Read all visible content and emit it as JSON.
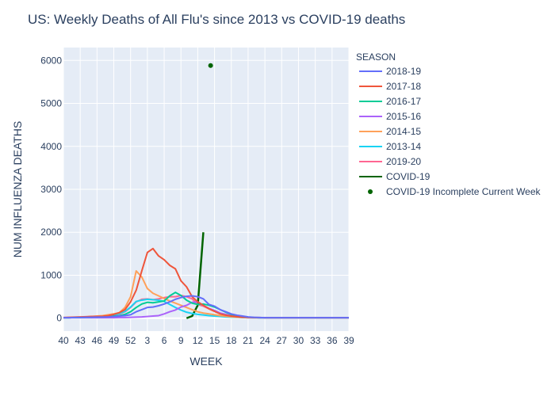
{
  "chart_data": {
    "type": "line",
    "title": "US: Weekly Deaths of All Flu's since 2013 vs COVID-19 deaths",
    "xlabel": "WEEK",
    "ylabel": "NUM INFLUENZA DEATHS",
    "x_categories": [
      "40",
      "41",
      "42",
      "43",
      "44",
      "45",
      "46",
      "47",
      "48",
      "49",
      "50",
      "51",
      "52",
      "1",
      "2",
      "3",
      "4",
      "5",
      "6",
      "7",
      "8",
      "9",
      "10",
      "11",
      "12",
      "13",
      "14",
      "15",
      "16",
      "17",
      "18",
      "19",
      "20",
      "21",
      "22",
      "23",
      "24",
      "25",
      "26",
      "27",
      "28",
      "29",
      "30",
      "31",
      "32",
      "33",
      "34",
      "35",
      "36",
      "37",
      "38",
      "39"
    ],
    "x_tick_labels": [
      "40",
      "43",
      "46",
      "49",
      "52",
      "3",
      "6",
      "9",
      "12",
      "15",
      "18",
      "21",
      "24",
      "27",
      "30",
      "33",
      "36",
      "39"
    ],
    "ylim": [
      -300,
      6300
    ],
    "y_ticks": [
      0,
      1000,
      2000,
      3000,
      4000,
      5000,
      6000
    ],
    "grid": true,
    "legend_title": "SEASON",
    "legend_position": "right",
    "series": [
      {
        "name": "2018-19",
        "color": "#636efa",
        "values": [
          10,
          10,
          15,
          15,
          20,
          20,
          25,
          25,
          30,
          40,
          50,
          60,
          80,
          150,
          200,
          250,
          260,
          290,
          330,
          380,
          440,
          480,
          510,
          520,
          500,
          450,
          320,
          280,
          200,
          150,
          100,
          70,
          50,
          30,
          20,
          15,
          10,
          10,
          10,
          10,
          10,
          10,
          10,
          10,
          10,
          10,
          10,
          10,
          10,
          10,
          10,
          10
        ]
      },
      {
        "name": "2017-18",
        "color": "#EF553B",
        "values": [
          15,
          20,
          25,
          30,
          35,
          40,
          40,
          45,
          60,
          90,
          130,
          200,
          380,
          650,
          1100,
          1530,
          1620,
          1450,
          1360,
          1230,
          1150,
          870,
          730,
          500,
          380,
          300,
          220,
          160,
          100,
          70,
          50,
          35,
          25,
          20,
          15,
          15,
          10,
          10,
          10,
          10,
          10,
          10,
          10,
          10,
          10,
          10,
          10,
          10,
          10,
          10,
          10,
          10
        ]
      },
      {
        "name": "2016-17",
        "color": "#00cc96",
        "values": [
          10,
          10,
          15,
          15,
          20,
          20,
          25,
          30,
          40,
          50,
          60,
          90,
          150,
          250,
          330,
          370,
          360,
          380,
          400,
          520,
          600,
          530,
          420,
          350,
          320,
          330,
          300,
          260,
          200,
          140,
          90,
          60,
          40,
          25,
          15,
          10,
          10,
          10,
          10,
          10,
          10,
          10,
          10,
          10,
          10,
          10,
          10,
          10,
          10,
          10,
          10,
          10
        ]
      },
      {
        "name": "2015-16",
        "color": "#ab63fa",
        "values": [
          10,
          10,
          10,
          10,
          10,
          10,
          10,
          10,
          10,
          10,
          15,
          15,
          20,
          25,
          30,
          40,
          50,
          60,
          100,
          150,
          190,
          260,
          300,
          370,
          380,
          300,
          230,
          180,
          120,
          90,
          60,
          40,
          30,
          20,
          15,
          10,
          10,
          10,
          10,
          10,
          10,
          10,
          10,
          10,
          10,
          10,
          10,
          10,
          10,
          10,
          10,
          10
        ]
      },
      {
        "name": "2014-15",
        "color": "#FFA15A",
        "values": [
          10,
          15,
          15,
          20,
          30,
          40,
          50,
          60,
          80,
          100,
          130,
          250,
          500,
          1100,
          960,
          690,
          580,
          520,
          460,
          400,
          350,
          300,
          250,
          200,
          150,
          120,
          100,
          80,
          60,
          45,
          35,
          25,
          20,
          15,
          10,
          10,
          10,
          10,
          10,
          10,
          10,
          10,
          10,
          10,
          10,
          10,
          10,
          10,
          10,
          10,
          10,
          10
        ]
      },
      {
        "name": "2013-14",
        "color": "#19d3f3",
        "values": [
          10,
          10,
          15,
          15,
          20,
          25,
          30,
          40,
          60,
          80,
          110,
          160,
          260,
          390,
          420,
          440,
          430,
          420,
          390,
          320,
          250,
          190,
          140,
          110,
          90,
          75,
          60,
          50,
          40,
          30,
          25,
          20,
          15,
          10,
          10,
          10,
          10,
          10,
          10,
          10,
          10,
          10,
          10,
          10,
          10,
          10,
          10,
          10,
          10,
          10,
          10,
          10
        ]
      },
      {
        "name": "2019-20",
        "color": "#FF6692",
        "values": [
          10,
          10,
          15,
          20,
          25,
          25,
          30,
          40,
          60,
          80,
          100,
          150,
          250,
          380,
          440,
          450,
          430,
          450,
          480,
          500,
          500,
          530,
          500,
          450,
          320,
          280,
          220,
          160,
          110,
          70,
          40,
          25,
          15,
          10,
          10,
          10,
          10,
          10,
          10,
          10,
          10,
          10,
          10,
          10,
          10,
          10,
          10,
          10,
          10,
          10,
          10,
          10
        ]
      },
      {
        "name": "COVID-19",
        "color": "#006400",
        "values": [
          null,
          null,
          null,
          null,
          null,
          null,
          null,
          null,
          null,
          null,
          null,
          null,
          null,
          null,
          null,
          null,
          null,
          null,
          null,
          null,
          null,
          null,
          0,
          50,
          300,
          2000,
          null,
          null,
          null,
          null,
          null,
          null,
          null,
          null,
          null,
          null,
          null,
          null,
          null,
          null,
          null,
          null,
          null,
          null,
          null,
          null,
          null,
          null,
          null,
          null,
          null,
          null
        ]
      }
    ],
    "markers": [
      {
        "name": "COVID-19 Incomplete Current Week",
        "color": "#006400",
        "x": "14",
        "y": 5880
      }
    ]
  }
}
